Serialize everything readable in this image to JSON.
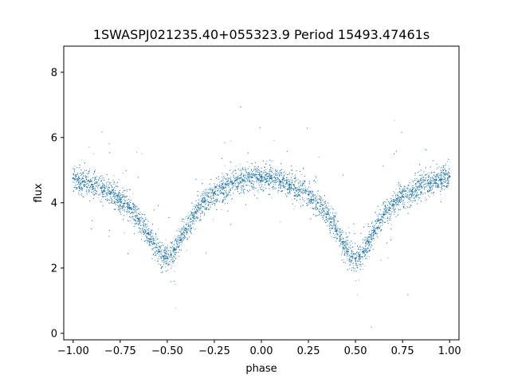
{
  "chart_data": {
    "type": "scatter",
    "title": "1SWASPJ021235.40+055323.9 Period 15493.47461s",
    "xlabel": "phase",
    "ylabel": "flux",
    "xlim": [
      -1.05,
      1.05
    ],
    "ylim": [
      -0.2,
      8.8
    ],
    "xticks": [
      -1.0,
      -0.75,
      -0.5,
      -0.25,
      0.0,
      0.25,
      0.5,
      0.75,
      1.0
    ],
    "xtick_labels": [
      "−1.00",
      "−0.75",
      "−0.50",
      "−0.25",
      "0.00",
      "0.25",
      "0.50",
      "0.75",
      "1.00"
    ],
    "yticks": [
      0,
      2,
      4,
      6,
      8
    ],
    "ytick_labels": [
      "0",
      "2",
      "4",
      "6",
      "8"
    ],
    "grid": false,
    "legend": "none",
    "point_color": "#1f77b4",
    "series": [
      {
        "marker": "tiny-dot",
        "points": [
          [
            -1.0,
            4.75
          ],
          [
            -0.95,
            4.65
          ],
          [
            -0.9,
            4.55
          ],
          [
            -0.85,
            4.45
          ],
          [
            -0.8,
            4.3
          ],
          [
            -0.75,
            4.1
          ],
          [
            -0.7,
            3.85
          ],
          [
            -0.65,
            3.5
          ],
          [
            -0.6,
            3.05
          ],
          [
            -0.57,
            2.75
          ],
          [
            -0.54,
            2.5
          ],
          [
            -0.52,
            2.35
          ],
          [
            -0.5,
            2.3
          ],
          [
            -0.48,
            2.4
          ],
          [
            -0.46,
            2.55
          ],
          [
            -0.43,
            2.85
          ],
          [
            -0.4,
            3.2
          ],
          [
            -0.35,
            3.7
          ],
          [
            -0.3,
            4.05
          ],
          [
            -0.25,
            4.3
          ],
          [
            -0.2,
            4.45
          ],
          [
            -0.15,
            4.6
          ],
          [
            -0.1,
            4.7
          ],
          [
            -0.05,
            4.78
          ],
          [
            0.0,
            4.8
          ],
          [
            0.05,
            4.75
          ],
          [
            0.1,
            4.65
          ],
          [
            0.15,
            4.55
          ],
          [
            0.2,
            4.4
          ],
          [
            0.25,
            4.25
          ],
          [
            0.3,
            4.0
          ],
          [
            0.35,
            3.65
          ],
          [
            0.4,
            3.15
          ],
          [
            0.43,
            2.8
          ],
          [
            0.46,
            2.5
          ],
          [
            0.48,
            2.35
          ],
          [
            0.5,
            2.3
          ],
          [
            0.52,
            2.35
          ],
          [
            0.54,
            2.5
          ],
          [
            0.57,
            2.8
          ],
          [
            0.6,
            3.15
          ],
          [
            0.65,
            3.65
          ],
          [
            0.7,
            3.95
          ],
          [
            0.75,
            4.2
          ],
          [
            0.8,
            4.35
          ],
          [
            0.85,
            4.5
          ],
          [
            0.9,
            4.6
          ],
          [
            0.95,
            4.7
          ],
          [
            1.0,
            4.8
          ]
        ]
      }
    ]
  }
}
